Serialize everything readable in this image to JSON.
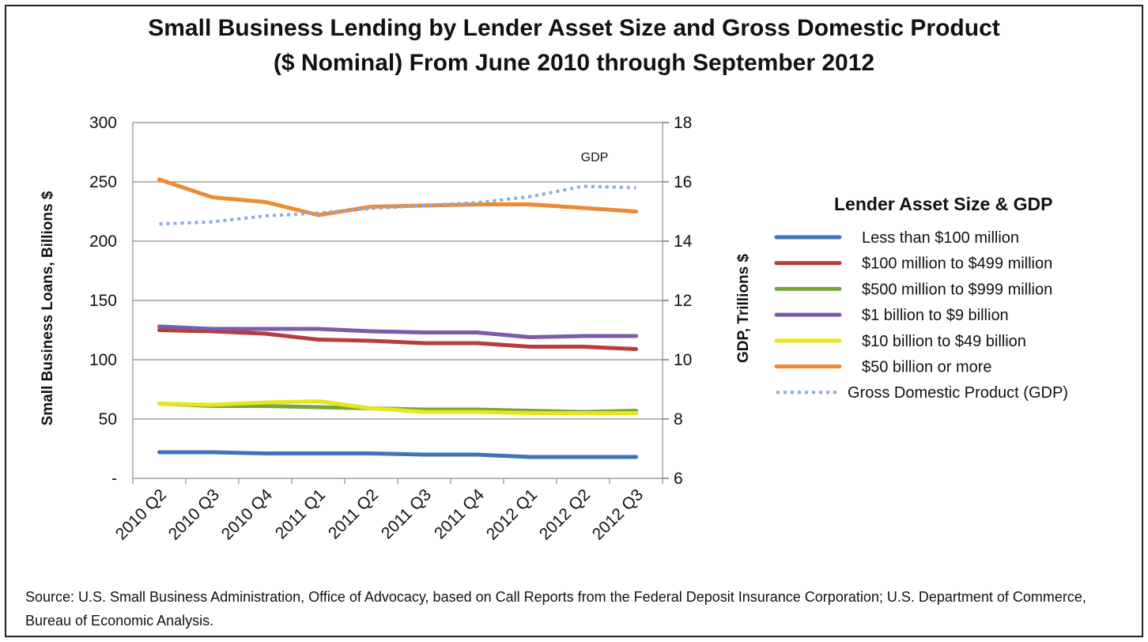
{
  "chart_data": {
    "type": "line",
    "title_lines": [
      "Small Business Lending by Lender Asset Size and Gross Domestic Product",
      "($ Nominal) From June 2010 through September 2012"
    ],
    "categories": [
      "2010 Q2",
      "2010 Q3",
      "2010 Q4",
      "2011 Q1",
      "2011 Q2",
      "2011 Q3",
      "2011 Q4",
      "2012 Q1",
      "2012 Q2",
      "2012 Q3"
    ],
    "ylabel": "Small Business Loans, Billions $",
    "y2label": "GDP, Trillions $",
    "ylim": [
      0,
      300
    ],
    "y2lim": [
      6,
      18
    ],
    "yticks": [
      "-",
      "50",
      "100",
      "150",
      "200",
      "250",
      "300"
    ],
    "y2ticks": [
      "6",
      "8",
      "10",
      "12",
      "14",
      "16",
      "18"
    ],
    "grid": true,
    "legend_title": "Lender Asset Size & GDP",
    "legend_position": "right",
    "annotation": "GDP",
    "series": [
      {
        "name": "Less than $100 million",
        "axis": "left",
        "color": "#3f73b9",
        "dashed": false,
        "values": [
          22,
          22,
          21,
          21,
          21,
          20,
          20,
          18,
          18,
          18
        ]
      },
      {
        "name": "$100 million to $499 million",
        "axis": "left",
        "color": "#b83c3a",
        "dashed": false,
        "values": [
          125,
          124,
          122,
          117,
          116,
          114,
          114,
          111,
          111,
          109
        ]
      },
      {
        "name": "$500 million to $999 million",
        "axis": "left",
        "color": "#79a33f",
        "dashed": false,
        "values": [
          63,
          61,
          61,
          60,
          59,
          58,
          58,
          57,
          56,
          57
        ]
      },
      {
        "name": "$1 billion to $9 billion",
        "axis": "left",
        "color": "#7d5ba6",
        "dashed": false,
        "values": [
          128,
          126,
          126,
          126,
          124,
          123,
          123,
          119,
          120,
          120
        ]
      },
      {
        "name": "$10 billion to $49 billion",
        "axis": "left",
        "color": "#e8e61a",
        "dashed": false,
        "values": [
          63,
          62,
          64,
          65,
          59,
          56,
          56,
          55,
          55,
          55
        ]
      },
      {
        "name": "$50 billion or more",
        "axis": "left",
        "color": "#ec8a35",
        "dashed": false,
        "values": [
          252,
          237,
          233,
          222,
          229,
          230,
          231,
          231,
          228,
          225
        ]
      },
      {
        "name": "Gross Domestic Product (GDP)",
        "axis": "right",
        "color": "#8eaadb",
        "dashed": true,
        "values": [
          14.58,
          14.65,
          14.85,
          14.95,
          15.1,
          15.2,
          15.3,
          15.5,
          15.85,
          15.8
        ]
      }
    ]
  },
  "source_note": "Source: U.S. Small Business Administration, Office of Advocacy,  based on Call Reports from the Federal Deposit Insurance Corporation;  U.S. Department of Commerce, Bureau of Economic Analysis."
}
